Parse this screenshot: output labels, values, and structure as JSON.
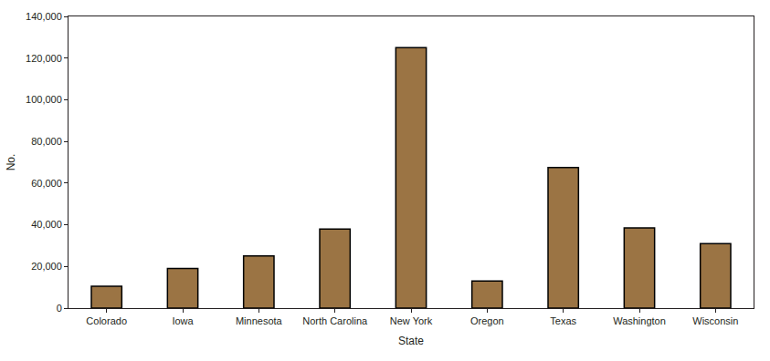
{
  "chart_data": {
    "type": "bar",
    "x_label": "State",
    "y_label": "No.",
    "categories": [
      "Colorado",
      "Iowa",
      "Minnesota",
      "North Carolina",
      "New York",
      "Oregon",
      "Texas",
      "Washington",
      "Wisconsin"
    ],
    "values": [
      10500,
      19000,
      25000,
      38000,
      125000,
      13000,
      67500,
      38500,
      31000
    ],
    "color": "#9b7444",
    "ylim": [
      0,
      140000
    ],
    "yticks": [
      0,
      {
        "value": 20000,
        "label": "20,000"
      },
      {
        "value": 40000,
        "label": "40,000"
      },
      {
        "value": 60000,
        "label": "60,000"
      },
      {
        "value": 80000,
        "label": "80,000"
      },
      {
        "value": 100000,
        "label": "100,000"
      },
      {
        "value": 120000,
        "label": "120,000"
      },
      {
        "value": 140000,
        "label": "140,000"
      }
    ],
    "grid": false
  }
}
